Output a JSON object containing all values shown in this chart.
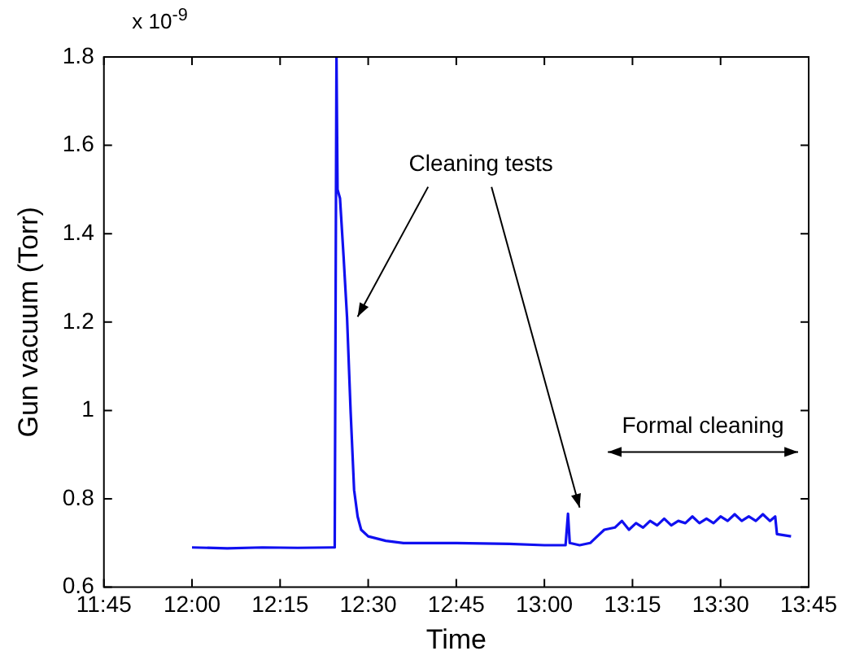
{
  "chart_data": {
    "type": "line",
    "xlabel": "Time",
    "ylabel": "Gun vacuum (Torr)",
    "annotations": [
      "x 10$^{-9}$",
      "Cleaning tests",
      "Formal cleaning"
    ],
    "series": [
      {
        "color": "#1010f0",
        "x": [
          12.0,
          12.1,
          12.2,
          12.3,
          12.4,
          12.405,
          12.41,
          12.413,
          12.42,
          12.43,
          12.44,
          12.45,
          12.46,
          12.47,
          12.48,
          12.5,
          12.55,
          12.6,
          12.75,
          12.9,
          13.0,
          13.06,
          13.067,
          13.072,
          13.1,
          13.13,
          13.15,
          13.17,
          13.2,
          13.22,
          13.24,
          13.26,
          13.28,
          13.3,
          13.32,
          13.34,
          13.36,
          13.38,
          13.4,
          13.42,
          13.44,
          13.46,
          13.48,
          13.5,
          13.52,
          13.54,
          13.56,
          13.58,
          13.6,
          13.62,
          13.64,
          13.655,
          13.66,
          13.7
        ],
        "values": [
          0.69,
          0.688,
          0.69,
          0.689,
          0.69,
          0.69,
          1.8,
          1.5,
          1.48,
          1.35,
          1.21,
          1.0,
          0.82,
          0.76,
          0.73,
          0.715,
          0.705,
          0.7,
          0.7,
          0.698,
          0.695,
          0.695,
          0.766,
          0.7,
          0.695,
          0.7,
          0.715,
          0.73,
          0.735,
          0.75,
          0.73,
          0.745,
          0.735,
          0.75,
          0.74,
          0.755,
          0.74,
          0.75,
          0.745,
          0.76,
          0.745,
          0.755,
          0.745,
          0.76,
          0.75,
          0.765,
          0.75,
          0.76,
          0.75,
          0.765,
          0.75,
          0.76,
          0.72,
          0.715
        ]
      }
    ],
    "xlim": [
      11.75,
      13.75
    ],
    "xticks": [
      {
        "value": 11.75,
        "label": "11:45"
      },
      {
        "value": 12,
        "label": "12:00"
      },
      {
        "value": 12.25,
        "label": "12:15"
      },
      {
        "value": 12.5,
        "label": "12:30"
      },
      {
        "value": 12.75,
        "label": "12:45"
      },
      {
        "value": 13,
        "label": "13:00"
      },
      {
        "value": 13.25,
        "label": "13:15"
      },
      {
        "value": 13.5,
        "label": "13:30"
      },
      {
        "value": 13.75,
        "label": "13:45"
      }
    ],
    "ylim": [
      0.6,
      1.8
    ],
    "yticks": [
      0.6,
      0.8,
      1,
      1.2,
      1.4,
      1.6,
      1.8
    ],
    "grid": false,
    "legend": false,
    "marker": "none",
    "line_style": "solid"
  }
}
